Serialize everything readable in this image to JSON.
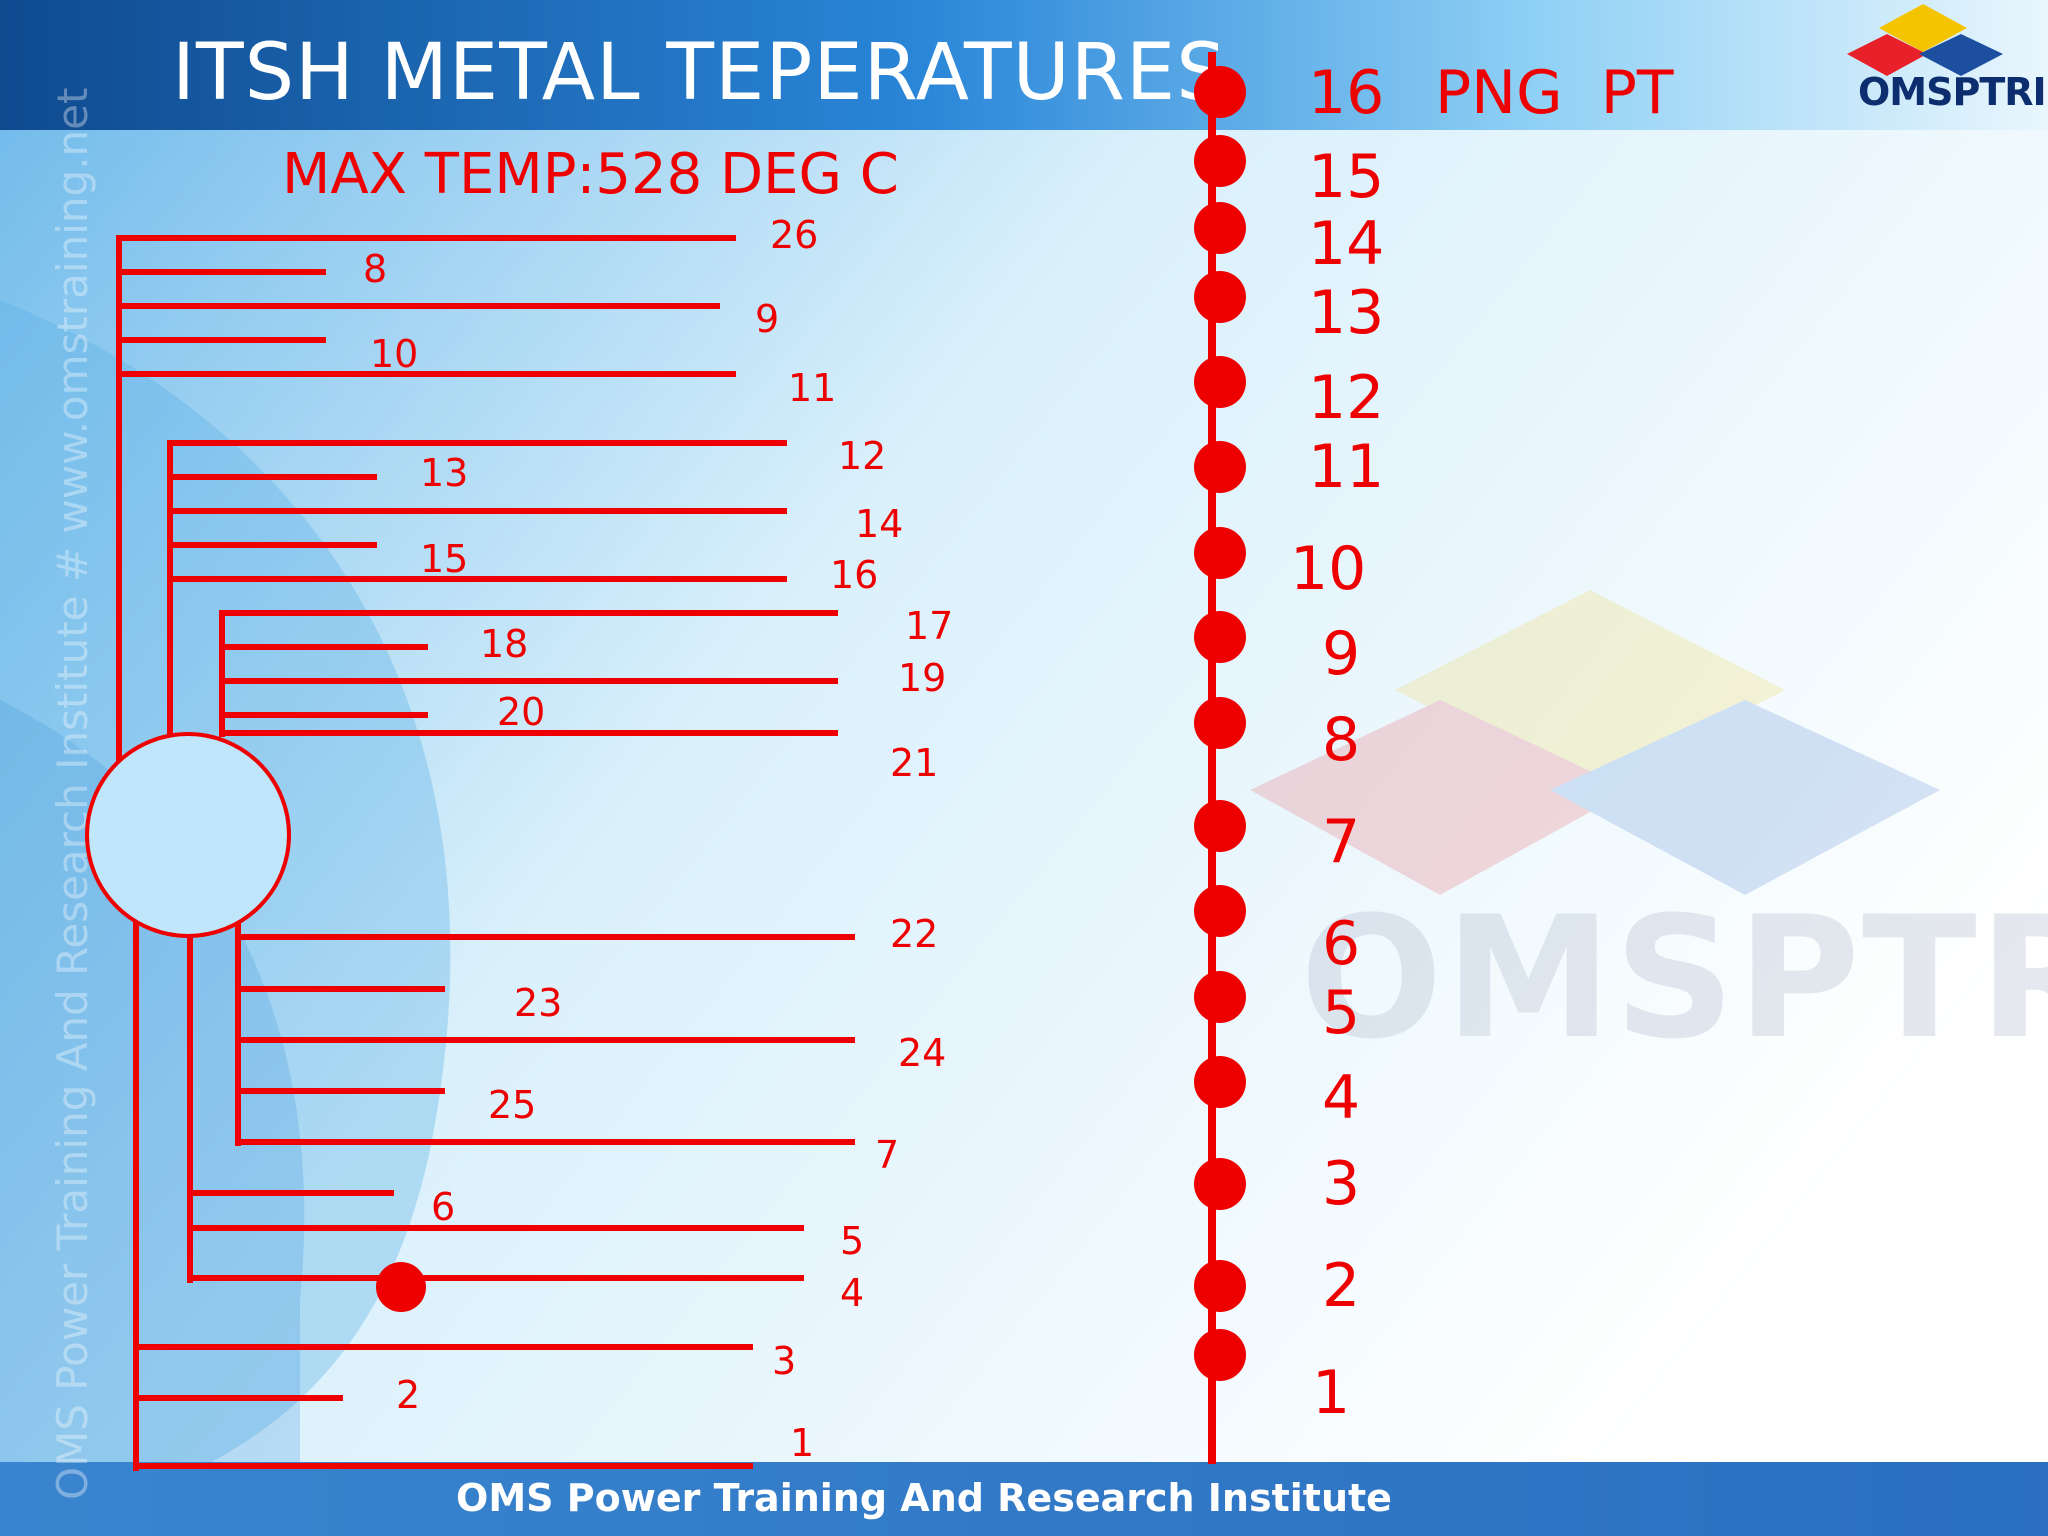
{
  "slide": {
    "title": "ITSH METAL TEPERATURES",
    "subtitle": "MAX TEMP:528 DEG C",
    "footer": "OMS Power Training And Research Institute",
    "watermark_vertical": "OMS Power Training And Research Institute # www.omstraining.net",
    "watermark_logo": "OMSPTRI",
    "logo": {
      "text": "OMSPTRI",
      "colors": [
        "#f5c400",
        "#e8202a",
        "#1d4fa0"
      ]
    },
    "colors": {
      "diagram": "#ee0000",
      "header": "#134f95",
      "footer": "#2e77c7"
    }
  },
  "diagram": {
    "tube_labels": [
      "26",
      "8",
      "9",
      "10",
      "11",
      "12",
      "13",
      "14",
      "15",
      "16",
      "17",
      "18",
      "19",
      "20",
      "21",
      "22",
      "23",
      "24",
      "25",
      "7",
      "6",
      "5",
      "4",
      "3",
      "2",
      "1"
    ],
    "png_pt": {
      "header_label": "PNG  PT",
      "points": [
        "16",
        "15",
        "14",
        "13",
        "12",
        "11",
        "10",
        "9",
        "8",
        "7",
        "6",
        "5",
        "4",
        "3",
        "2",
        "1"
      ]
    }
  }
}
